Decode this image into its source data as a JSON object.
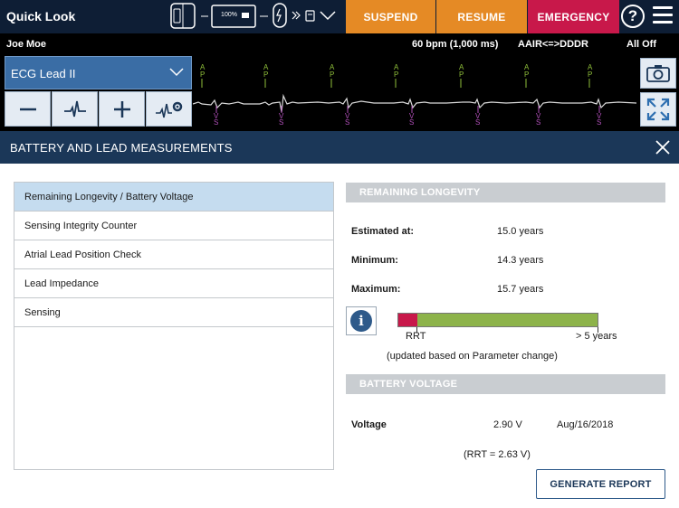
{
  "app": {
    "title": "Quick Look"
  },
  "status": {
    "battery_percent": "100%"
  },
  "top_buttons": {
    "suspend": "SUSPEND",
    "resume": "RESUME",
    "emergency": "EMERGENCY",
    "help": "?"
  },
  "patient": {
    "name": "Joe Moe",
    "rate": "60 bpm (1,000 ms)",
    "mode": "AAIR<=>DDDR",
    "alert": "All Off"
  },
  "ecg": {
    "lead_label": "ECG Lead II",
    "atrial_marker": "A\nP",
    "ventricular_marker": "V\nS",
    "controls": [
      "minus-icon",
      "pulse-icon",
      "plus-icon",
      "ecg-settings-icon"
    ]
  },
  "section": {
    "title": "BATTERY AND LEAD MEASUREMENTS"
  },
  "nav": {
    "items": [
      {
        "label": "Remaining Longevity / Battery Voltage",
        "active": true
      },
      {
        "label": "Sensing Integrity Counter",
        "active": false
      },
      {
        "label": "Atrial Lead Position Check",
        "active": false
      },
      {
        "label": "Lead Impedance",
        "active": false
      },
      {
        "label": "Sensing",
        "active": false
      }
    ]
  },
  "longevity": {
    "header": "REMAINING LONGEVITY",
    "estimated_label": "Estimated at:",
    "estimated_value": "15.0 years",
    "minimum_label": "Minimum:",
    "minimum_value": "14.3 years",
    "maximum_label": "Maximum:",
    "maximum_value": "15.7 years",
    "rrt_label": "RRT",
    "max_label": "> 5 years",
    "note": "(updated based on Parameter change)"
  },
  "battery": {
    "header": "BATTERY VOLTAGE",
    "voltage_label": "Voltage",
    "voltage_value": "2.90 V",
    "date": "Aug/16/2018",
    "rrt_note": "(RRT = 2.63 V)"
  },
  "actions": {
    "generate_report": "GENERATE REPORT"
  },
  "colors": {
    "navy": "#0e1e35",
    "orange": "#e58a25",
    "emergency": "#c8184a",
    "bar_green": "#8db34a",
    "bar_red": "#c8184a"
  }
}
